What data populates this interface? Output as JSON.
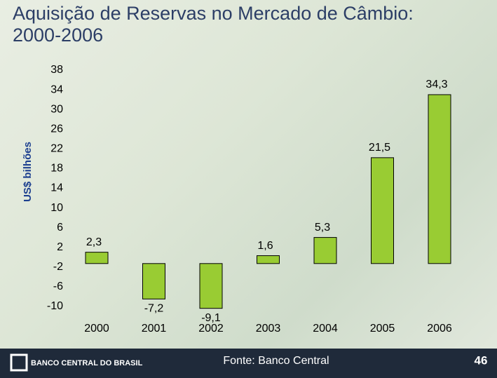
{
  "chart_data": {
    "type": "bar",
    "title": "Aquisição de Reservas no Mercado de Câmbio: 2000-2006",
    "y_label": "US$ bilhões",
    "source": "Fonte: Banco Central",
    "footer": "BANCO CENTRAL DO BRASIL",
    "page": "46",
    "categories": [
      "2000",
      "2001",
      "2002",
      "2003",
      "2004",
      "2005",
      "2006"
    ],
    "values": [
      2.3,
      -7.2,
      -9.1,
      1.6,
      5.3,
      21.5,
      34.3
    ],
    "value_labels": [
      "2,3",
      "-7,2",
      "-9,1",
      "1,6",
      "5,3",
      "21,5",
      "34,3"
    ],
    "color": "#99cc33",
    "ylim": [
      -10,
      38
    ],
    "yticks": [
      38,
      34,
      30,
      26,
      22,
      18,
      14,
      10,
      6,
      2,
      -2,
      -6,
      -10
    ],
    "grid": false
  }
}
